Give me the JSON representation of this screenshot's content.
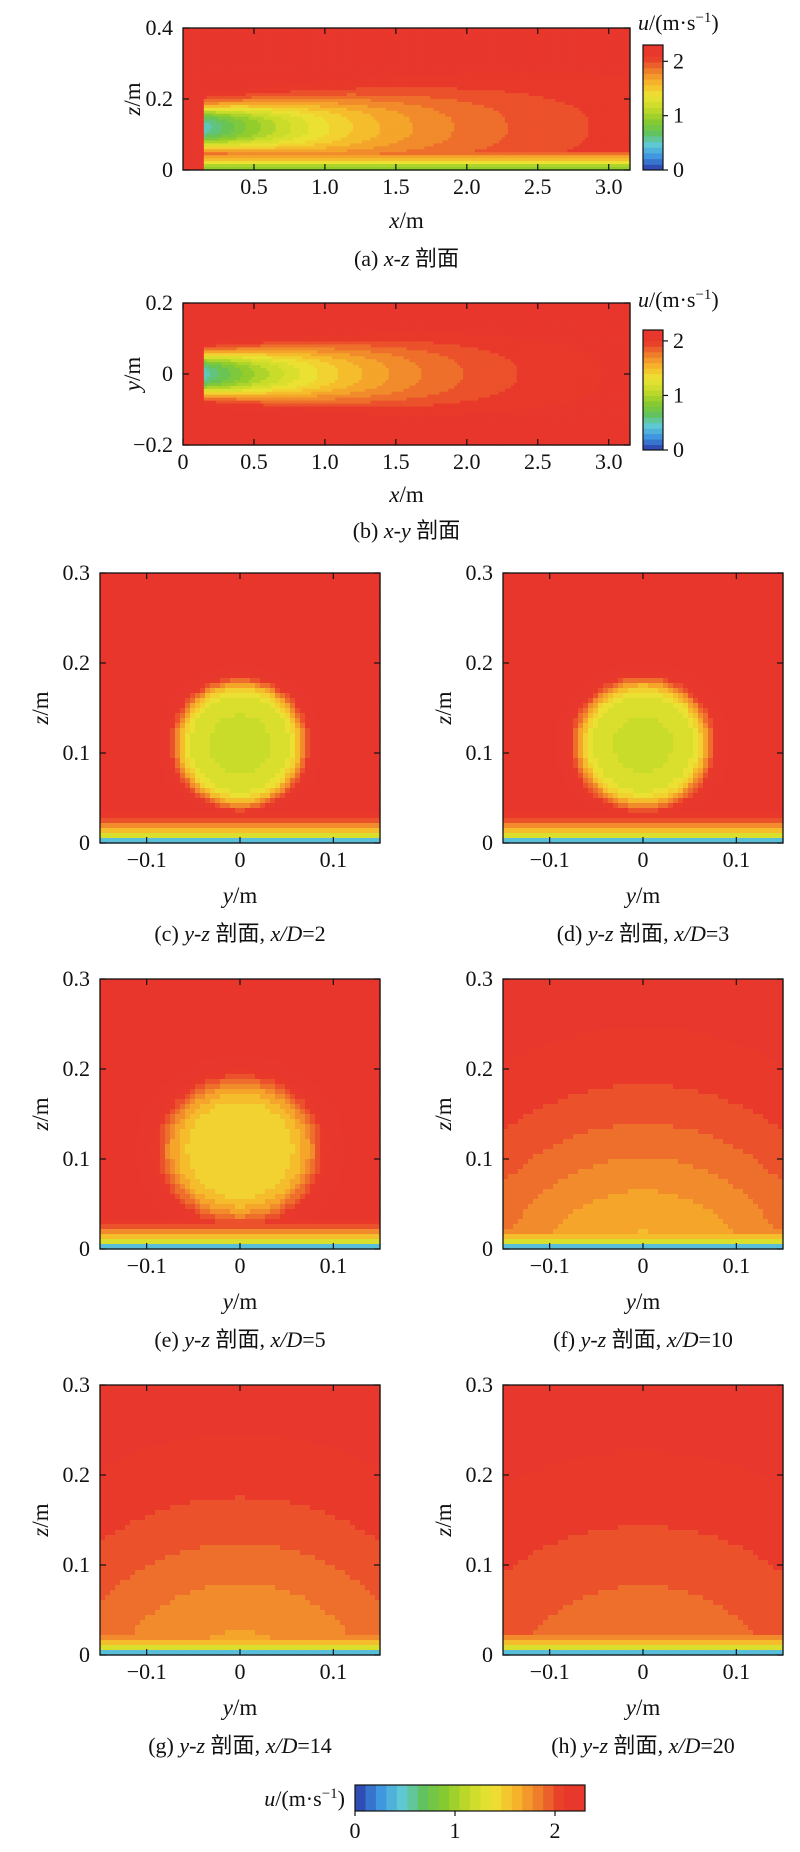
{
  "colormap_colors": [
    "#2c3aa8",
    "#3c8fe0",
    "#5ec9d8",
    "#63c25a",
    "#8ccb2c",
    "#c9dc2a",
    "#eee233",
    "#f6b52a",
    "#ef7b2b",
    "#e8392b",
    "#e8362c"
  ],
  "chart_data": [
    {
      "id": "a",
      "type": "heatmap",
      "caption": "(a) x-z 剖面",
      "xlabel": "x/m",
      "ylabel": "z/m",
      "xlim": [
        0,
        3.15
      ],
      "ylim": [
        0,
        0.4
      ],
      "xticks": [
        0.5,
        1.0,
        1.5,
        2.0,
        2.5,
        3.0
      ],
      "xticklabels": [
        "0.5",
        "1.0",
        "1.5",
        "2.0",
        "2.5",
        "3.0"
      ],
      "yticks": [
        0,
        0.2,
        0.4
      ],
      "yticklabels": [
        "0",
        "0.2",
        "0.4"
      ],
      "colorbar": {
        "label": "u/(m·s⁻¹)",
        "range": [
          0,
          2.3
        ],
        "ticks": [
          0,
          1,
          2
        ],
        "ticklabels": [
          "0",
          "1",
          "2"
        ]
      },
      "free_stream_u": 2.2,
      "jet_core_u": 0.5,
      "jet_start_x": 0.15,
      "jet_center": 0.12,
      "jet_half_width": 0.06
    },
    {
      "id": "b",
      "type": "heatmap",
      "caption": "(b) x-y 剖面",
      "xlabel": "x/m",
      "ylabel": "y/m",
      "xlim": [
        0,
        3.15
      ],
      "ylim": [
        -0.2,
        0.2
      ],
      "xticks": [
        0,
        0.5,
        1.0,
        1.5,
        2.0,
        2.5,
        3.0
      ],
      "xticklabels": [
        "0",
        "0.5",
        "1.0",
        "1.5",
        "2.0",
        "2.5",
        "3.0"
      ],
      "yticks": [
        -0.2,
        0,
        0.2
      ],
      "yticklabels": [
        "−0.2",
        "0",
        "0.2"
      ],
      "colorbar": {
        "label": "u/(m·s⁻¹)",
        "range": [
          0,
          2.2
        ],
        "ticks": [
          0,
          1,
          2
        ],
        "ticklabels": [
          "0",
          "1",
          "2"
        ]
      },
      "free_stream_u": 2.2,
      "jet_core_u": 0.5,
      "jet_start_x": 0.15,
      "jet_center": 0,
      "jet_half_width": 0.06
    },
    {
      "id": "c",
      "type": "heatmap",
      "caption": "(c) y-z 剖面, x/D=2",
      "xlabel": "y/m",
      "ylabel": "z/m",
      "xlim": [
        -0.15,
        0.15
      ],
      "ylim": [
        0,
        0.3
      ],
      "xticks": [
        -0.1,
        0,
        0.1
      ],
      "xticklabels": [
        "−0.1",
        "0",
        "0.1"
      ],
      "yticks": [
        0,
        0.1,
        0.2,
        0.3
      ],
      "yticklabels": [
        "0",
        "0.1",
        "0.2",
        "0.3"
      ],
      "core_u": 1.2,
      "core_radius": 0.07,
      "spread": 0.0
    },
    {
      "id": "d",
      "type": "heatmap",
      "caption": "(d) y-z 剖面, x/D=3",
      "xlabel": "y/m",
      "ylabel": "z/m",
      "xlim": [
        -0.15,
        0.15
      ],
      "ylim": [
        0,
        0.3
      ],
      "xticks": [
        -0.1,
        0,
        0.1
      ],
      "xticklabels": [
        "−0.1",
        "0",
        "0.1"
      ],
      "yticks": [
        0,
        0.1,
        0.2,
        0.3
      ],
      "yticklabels": [
        "0",
        "0.1",
        "0.2",
        "0.3"
      ],
      "core_u": 1.2,
      "core_radius": 0.07,
      "spread": 0.1
    },
    {
      "id": "e",
      "type": "heatmap",
      "caption": "(e) y-z 剖面, x/D=5",
      "xlabel": "y/m",
      "ylabel": "z/m",
      "xlim": [
        -0.15,
        0.15
      ],
      "ylim": [
        0,
        0.3
      ],
      "xticks": [
        -0.1,
        0,
        0.1
      ],
      "xticklabels": [
        "−0.1",
        "0",
        "0.1"
      ],
      "yticks": [
        0,
        0.1,
        0.2,
        0.3
      ],
      "yticklabels": [
        "0",
        "0.1",
        "0.2",
        "0.3"
      ],
      "core_u": 1.45,
      "core_radius": 0.075,
      "spread": 0.3
    },
    {
      "id": "f",
      "type": "heatmap",
      "caption": "(f) y-z 剖面, x/D=10",
      "xlabel": "y/m",
      "ylabel": "z/m",
      "xlim": [
        -0.15,
        0.15
      ],
      "ylim": [
        0,
        0.3
      ],
      "xticks": [
        -0.1,
        0,
        0.1
      ],
      "xticklabels": [
        "−0.1",
        "0",
        "0.1"
      ],
      "yticks": [
        0,
        0.1,
        0.2,
        0.3
      ],
      "yticklabels": [
        "0",
        "0.1",
        "0.2",
        "0.3"
      ],
      "core_u": 1.6,
      "core_radius": 0.1,
      "spread": 0.6
    },
    {
      "id": "g",
      "type": "heatmap",
      "caption": "(g) y-z 剖面, x/D=14",
      "xlabel": "y/m",
      "ylabel": "z/m",
      "xlim": [
        -0.15,
        0.15
      ],
      "ylim": [
        0,
        0.3
      ],
      "xticks": [
        -0.1,
        0,
        0.1
      ],
      "xticklabels": [
        "−0.1",
        "0",
        "0.1"
      ],
      "yticks": [
        0,
        0.1,
        0.2,
        0.3
      ],
      "yticklabels": [
        "0",
        "0.1",
        "0.2",
        "0.3"
      ],
      "core_u": 1.7,
      "core_radius": 0.12,
      "spread": 0.8
    },
    {
      "id": "h",
      "type": "heatmap",
      "caption": "(h) y-z 剖面, x/D=20",
      "xlabel": "y/m",
      "ylabel": "z/m",
      "xlim": [
        -0.15,
        0.15
      ],
      "ylim": [
        0,
        0.3
      ],
      "xticks": [
        -0.1,
        0,
        0.1
      ],
      "xticklabels": [
        "−0.1",
        "0",
        "0.1"
      ],
      "yticks": [
        0,
        0.1,
        0.2,
        0.3
      ],
      "yticklabels": [
        "0",
        "0.1",
        "0.2",
        "0.3"
      ],
      "core_u": 1.85,
      "core_radius": 0.13,
      "spread": 1.0
    }
  ],
  "shared_colorbar": {
    "label": "u/(m·s⁻¹)",
    "range": [
      0,
      2.3
    ],
    "ticks": [
      0,
      1,
      2
    ],
    "ticklabels": [
      "0",
      "1",
      "2"
    ]
  }
}
